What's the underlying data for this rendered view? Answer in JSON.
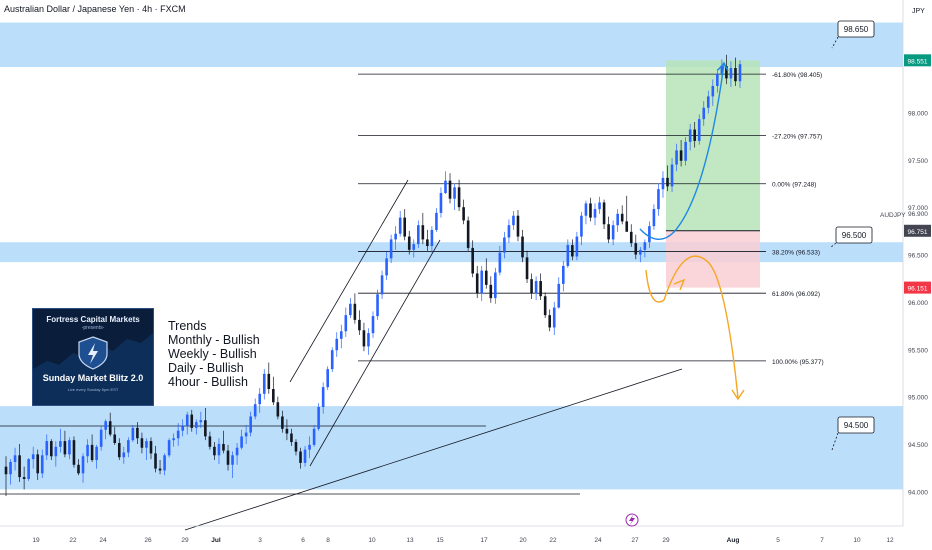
{
  "header": {
    "symbol_title": "Australian Dollar / Japanese Yen · 4h · FXCM",
    "currency": "JPY"
  },
  "colors": {
    "zone_fill": "#bbdefb",
    "up_candle": "#2962ff",
    "down_candle": "#131722",
    "long_target_zone": "#b7e4b9",
    "long_stop_zone": "#f9cfd3",
    "projection_up": "#1e88e5",
    "projection_down": "#f5a623",
    "price_tag_green": "#089981",
    "price_tag_red": "#f23645",
    "price_tag_dark": "#434651"
  },
  "banner": {
    "org": "Fortress Capital Markets",
    "presents": "-presents-",
    "title": "Sunday Market Blitz 2.0",
    "tagline": "Live every Sunday 8pm EST"
  },
  "trends": {
    "heading": "Trends",
    "lines": [
      "Monthly - Bullish",
      "Weekly - Bullish",
      "Daily - Bullish",
      "4hour - Bullish"
    ]
  },
  "bottom_icon": "lightning-icon",
  "chart_data": {
    "type": "candlestick",
    "symbol": "AUDJPY",
    "timeframe": "4h",
    "y_axis": {
      "range": [
        93.75,
        99.15
      ],
      "tick_labels": [
        "98.000",
        "97.500",
        "97.000",
        "96.500",
        "96.000",
        "95.500",
        "95.000",
        "94.500",
        "94.000"
      ],
      "extra_tick_labels": [
        "96.900"
      ],
      "symbol_label": "AUDJPY"
    },
    "x_axis": {
      "tick_labels": [
        "19",
        "22",
        "24",
        "26",
        "29",
        "Jul",
        "3",
        "6",
        "8",
        "10",
        "13",
        "15",
        "17",
        "20",
        "22",
        "24",
        "27",
        "29",
        "Aug",
        "5",
        "7",
        "10",
        "12"
      ],
      "bold_labels": [
        "Jul",
        "Aug"
      ]
    },
    "price_tags": [
      {
        "value": "98.551",
        "style": "green"
      },
      {
        "value": "96.751",
        "style": "dark"
      },
      {
        "value": "96.151",
        "style": "red"
      }
    ],
    "zone_labels": [
      "98.650",
      "96.500",
      "94.500"
    ],
    "zones": [
      {
        "low": 98.48,
        "high": 98.95
      },
      {
        "low": 96.42,
        "high": 96.63
      },
      {
        "low": 94.02,
        "high": 94.9
      }
    ],
    "fib_levels": [
      {
        "label": "-61.80% (98.405)",
        "value": 98.405
      },
      {
        "label": "-27.20% (97.757)",
        "value": 97.757
      },
      {
        "label": "0.00% (97.248)",
        "value": 97.248
      },
      {
        "label": "38.20% (96.533)",
        "value": 96.533
      },
      {
        "label": "61.80% (96.092)",
        "value": 96.092
      },
      {
        "label": "100.00% (95.377)",
        "value": 95.377
      }
    ],
    "position": {
      "entry": 96.751,
      "target": 98.551,
      "stop": 96.151
    },
    "candles_ohlc": [
      [
        94.26,
        94.37,
        93.95,
        94.18
      ],
      [
        94.18,
        94.34,
        94.07,
        94.31
      ],
      [
        94.31,
        94.46,
        94.22,
        94.38
      ],
      [
        94.38,
        94.5,
        94.1,
        94.15
      ],
      [
        94.15,
        94.26,
        94.02,
        94.13
      ],
      [
        94.13,
        94.35,
        94.11,
        94.34
      ],
      [
        94.34,
        94.47,
        94.24,
        94.39
      ],
      [
        94.39,
        94.44,
        94.12,
        94.19
      ],
      [
        94.19,
        94.44,
        94.14,
        94.38
      ],
      [
        94.38,
        94.6,
        94.33,
        94.53
      ],
      [
        94.53,
        94.55,
        94.33,
        94.37
      ],
      [
        94.37,
        94.53,
        94.26,
        94.47
      ],
      [
        94.47,
        94.66,
        94.41,
        94.53
      ],
      [
        94.53,
        94.64,
        94.36,
        94.39
      ],
      [
        94.39,
        94.57,
        94.34,
        94.54
      ],
      [
        94.54,
        94.58,
        94.25,
        94.28
      ],
      [
        94.28,
        94.34,
        94.17,
        94.19
      ],
      [
        94.19,
        94.4,
        94.09,
        94.37
      ],
      [
        94.37,
        94.55,
        94.3,
        94.49
      ],
      [
        94.49,
        94.6,
        94.31,
        94.33
      ],
      [
        94.33,
        94.49,
        94.24,
        94.47
      ],
      [
        94.47,
        94.68,
        94.43,
        94.65
      ],
      [
        94.65,
        94.76,
        94.55,
        94.74
      ],
      [
        94.74,
        94.83,
        94.58,
        94.6
      ],
      [
        94.6,
        94.68,
        94.49,
        94.51
      ],
      [
        94.51,
        94.56,
        94.33,
        94.36
      ],
      [
        94.36,
        94.47,
        94.29,
        94.41
      ],
      [
        94.41,
        94.57,
        94.36,
        94.54
      ],
      [
        94.54,
        94.7,
        94.52,
        94.67
      ],
      [
        94.67,
        94.73,
        94.5,
        94.56
      ],
      [
        94.56,
        94.62,
        94.4,
        94.46
      ],
      [
        94.46,
        94.56,
        94.33,
        94.53
      ],
      [
        94.53,
        94.57,
        94.34,
        94.4
      ],
      [
        94.4,
        94.48,
        94.2,
        94.24
      ],
      [
        94.24,
        94.33,
        94.18,
        94.22
      ],
      [
        94.22,
        94.4,
        94.17,
        94.38
      ],
      [
        94.38,
        94.56,
        94.36,
        94.54
      ],
      [
        94.54,
        94.61,
        94.47,
        94.56
      ],
      [
        94.56,
        94.72,
        94.48,
        94.64
      ],
      [
        94.64,
        94.76,
        94.58,
        94.69
      ],
      [
        94.69,
        94.84,
        94.6,
        94.81
      ],
      [
        94.81,
        94.86,
        94.63,
        94.67
      ],
      [
        94.67,
        94.76,
        94.6,
        94.73
      ],
      [
        94.73,
        94.84,
        94.67,
        94.75
      ],
      [
        94.75,
        94.88,
        94.54,
        94.58
      ],
      [
        94.58,
        94.63,
        94.44,
        94.47
      ],
      [
        94.47,
        94.52,
        94.33,
        94.38
      ],
      [
        94.38,
        94.56,
        94.29,
        94.5
      ],
      [
        94.5,
        94.64,
        94.4,
        94.43
      ],
      [
        94.43,
        94.49,
        94.22,
        94.28
      ],
      [
        94.28,
        94.42,
        94.14,
        94.38
      ],
      [
        94.38,
        94.51,
        94.28,
        94.46
      ],
      [
        94.46,
        94.65,
        94.44,
        94.58
      ],
      [
        94.58,
        94.7,
        94.5,
        94.62
      ],
      [
        94.62,
        94.84,
        94.58,
        94.79
      ],
      [
        94.79,
        94.98,
        94.76,
        94.92
      ],
      [
        94.92,
        95.09,
        94.83,
        95.03
      ],
      [
        95.03,
        95.29,
        94.97,
        95.24
      ],
      [
        95.24,
        95.36,
        95.03,
        95.08
      ],
      [
        95.08,
        95.21,
        94.91,
        94.94
      ],
      [
        94.94,
        95.0,
        94.76,
        94.79
      ],
      [
        94.79,
        94.85,
        94.62,
        94.66
      ],
      [
        94.66,
        94.76,
        94.54,
        94.61
      ],
      [
        94.61,
        94.66,
        94.48,
        94.52
      ],
      [
        94.52,
        94.55,
        94.38,
        94.42
      ],
      [
        94.42,
        94.46,
        94.24,
        94.3
      ],
      [
        94.3,
        94.48,
        94.26,
        94.44
      ],
      [
        94.44,
        94.58,
        94.35,
        94.49
      ],
      [
        94.49,
        94.7,
        94.47,
        94.66
      ],
      [
        94.66,
        94.93,
        94.64,
        94.89
      ],
      [
        94.89,
        95.15,
        94.82,
        95.1
      ],
      [
        95.1,
        95.32,
        95.07,
        95.29
      ],
      [
        95.29,
        95.52,
        95.26,
        95.49
      ],
      [
        95.49,
        95.68,
        95.42,
        95.61
      ],
      [
        95.61,
        95.76,
        95.51,
        95.69
      ],
      [
        95.69,
        95.94,
        95.63,
        95.86
      ],
      [
        95.86,
        96.04,
        95.83,
        95.98
      ],
      [
        95.98,
        96.09,
        95.77,
        95.81
      ],
      [
        95.81,
        95.91,
        95.65,
        95.7
      ],
      [
        95.7,
        95.78,
        95.48,
        95.53
      ],
      [
        95.53,
        95.72,
        95.44,
        95.67
      ],
      [
        95.67,
        95.9,
        95.62,
        95.85
      ],
      [
        95.85,
        96.13,
        95.81,
        96.08
      ],
      [
        96.08,
        96.33,
        96.03,
        96.28
      ],
      [
        96.28,
        96.53,
        96.23,
        96.46
      ],
      [
        96.46,
        96.71,
        96.41,
        96.66
      ],
      [
        96.66,
        96.8,
        96.55,
        96.72
      ],
      [
        96.72,
        96.96,
        96.69,
        96.89
      ],
      [
        96.89,
        96.98,
        96.65,
        96.69
      ],
      [
        96.69,
        96.75,
        96.5,
        96.55
      ],
      [
        96.55,
        96.66,
        96.47,
        96.61
      ],
      [
        96.61,
        96.86,
        96.57,
        96.81
      ],
      [
        96.81,
        96.94,
        96.61,
        96.66
      ],
      [
        96.66,
        96.76,
        96.54,
        96.59
      ],
      [
        96.59,
        96.8,
        96.52,
        96.76
      ],
      [
        96.76,
        96.99,
        96.74,
        96.94
      ],
      [
        96.94,
        97.21,
        96.89,
        97.15
      ],
      [
        97.15,
        97.38,
        97.14,
        97.28
      ],
      [
        97.28,
        97.36,
        97.04,
        97.09
      ],
      [
        97.09,
        97.25,
        96.97,
        97.21
      ],
      [
        97.21,
        97.29,
        96.96,
        97.0
      ],
      [
        97.0,
        97.08,
        96.82,
        96.86
      ],
      [
        96.86,
        96.9,
        96.54,
        96.57
      ],
      [
        96.57,
        96.65,
        96.26,
        96.3
      ],
      [
        96.3,
        96.38,
        96.04,
        96.09
      ],
      [
        96.09,
        96.38,
        96.01,
        96.33
      ],
      [
        96.33,
        96.46,
        96.14,
        96.18
      ],
      [
        96.18,
        96.27,
        95.99,
        96.04
      ],
      [
        96.04,
        96.36,
        95.98,
        96.31
      ],
      [
        96.31,
        96.59,
        96.28,
        96.52
      ],
      [
        96.52,
        96.74,
        96.46,
        96.68
      ],
      [
        96.68,
        96.87,
        96.62,
        96.81
      ],
      [
        96.81,
        96.96,
        96.76,
        96.91
      ],
      [
        96.91,
        96.97,
        96.64,
        96.69
      ],
      [
        96.69,
        96.76,
        96.42,
        96.47
      ],
      [
        96.47,
        96.54,
        96.2,
        96.24
      ],
      [
        96.24,
        96.3,
        96.03,
        96.09
      ],
      [
        96.09,
        96.27,
        96.02,
        96.22
      ],
      [
        96.22,
        96.3,
        96.02,
        96.06
      ],
      [
        96.06,
        96.1,
        95.83,
        95.86
      ],
      [
        95.86,
        95.92,
        95.69,
        95.73
      ],
      [
        95.73,
        96.0,
        95.65,
        95.94
      ],
      [
        95.94,
        96.26,
        95.93,
        96.19
      ],
      [
        96.19,
        96.43,
        96.11,
        96.38
      ],
      [
        96.38,
        96.66,
        96.36,
        96.6
      ],
      [
        96.6,
        96.66,
        96.44,
        96.48
      ],
      [
        96.48,
        96.74,
        96.44,
        96.69
      ],
      [
        96.69,
        96.95,
        96.6,
        96.91
      ],
      [
        96.91,
        97.07,
        96.82,
        97.04
      ],
      [
        97.04,
        97.1,
        96.85,
        96.89
      ],
      [
        96.89,
        97.04,
        96.81,
        96.98
      ],
      [
        96.98,
        97.11,
        96.93,
        97.05
      ],
      [
        97.05,
        97.08,
        96.77,
        96.82
      ],
      [
        96.82,
        96.9,
        96.62,
        96.66
      ],
      [
        96.66,
        96.86,
        96.6,
        96.81
      ],
      [
        96.81,
        96.98,
        96.74,
        96.93
      ],
      [
        96.93,
        97.02,
        96.82,
        96.85
      ],
      [
        96.85,
        97.12,
        96.83,
        96.74
      ],
      [
        96.74,
        96.82,
        96.58,
        96.62
      ],
      [
        96.62,
        96.71,
        96.45,
        96.5
      ],
      [
        96.5,
        96.58,
        96.42,
        96.55
      ],
      [
        96.55,
        96.66,
        96.47,
        96.63
      ],
      [
        96.63,
        96.85,
        96.57,
        96.8
      ],
      [
        96.8,
        97.03,
        96.76,
        96.98
      ],
      [
        96.98,
        97.25,
        96.91,
        97.19
      ],
      [
        97.19,
        97.38,
        97.1,
        97.31
      ],
      [
        97.31,
        97.44,
        97.17,
        97.22
      ],
      [
        97.22,
        97.52,
        97.16,
        97.45
      ],
      [
        97.45,
        97.67,
        97.38,
        97.6
      ],
      [
        97.6,
        97.71,
        97.43,
        97.49
      ],
      [
        97.49,
        97.74,
        97.44,
        97.69
      ],
      [
        97.69,
        97.88,
        97.6,
        97.82
      ],
      [
        97.82,
        97.9,
        97.63,
        97.7
      ],
      [
        97.7,
        97.98,
        97.66,
        97.93
      ],
      [
        97.93,
        98.12,
        97.86,
        98.05
      ],
      [
        98.05,
        98.23,
        97.99,
        98.17
      ],
      [
        98.17,
        98.35,
        98.07,
        98.28
      ],
      [
        98.28,
        98.46,
        98.21,
        98.41
      ],
      [
        98.41,
        98.56,
        98.34,
        98.49
      ],
      [
        98.49,
        98.61,
        98.3,
        98.36
      ],
      [
        98.36,
        98.54,
        98.27,
        98.47
      ],
      [
        98.47,
        98.58,
        98.28,
        98.33
      ],
      [
        98.33,
        98.55,
        98.26,
        98.51
      ]
    ]
  }
}
